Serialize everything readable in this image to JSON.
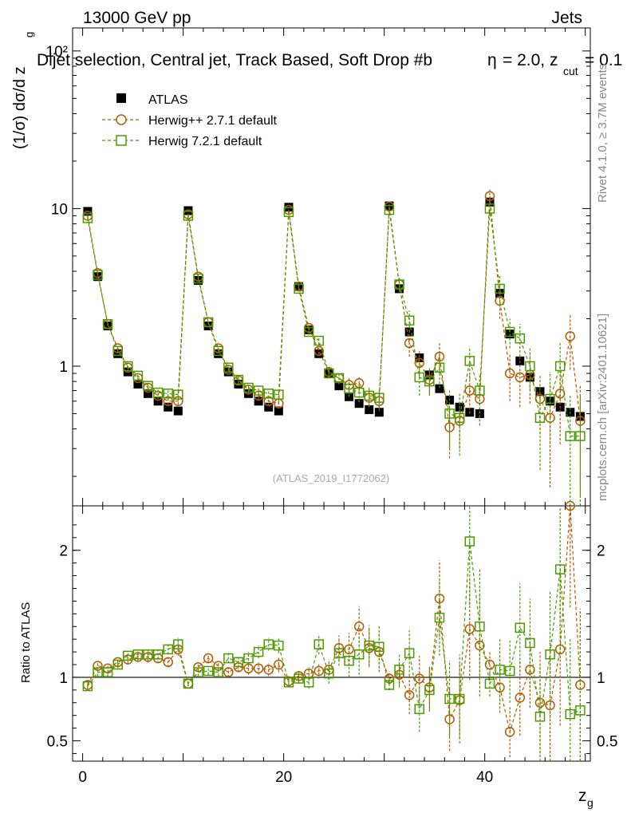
{
  "header": {
    "left": "13000 GeV pp",
    "right": "Jets",
    "title": "Dijet selection, Central jet, Track Based, Soft Drop #b",
    "title_rest": "= 2.0, z",
    "title_sub": "cut",
    "title_end": "= 0.1",
    "eta_glyph": "η"
  },
  "side_labels": {
    "rivet": "Rivet 4.1.0, ≥ 3.7M events",
    "mcplots": "mcplots.cern.ch [arXiv:2401.10621]"
  },
  "watermark": "(ATLAS_2019_I1772062)",
  "chart_data": [
    {
      "type": "scatter",
      "panel": "main",
      "title": "Dijet selection, Central jet, Track Based, Soft Drop #b = 2.0, z_cut = 0.1",
      "xlabel": "z",
      "xlabel_sub": "g",
      "ylabel": "(1/σ) dσ/d z",
      "ylabel_sub": "g",
      "yscale": "log",
      "xlim": [
        -1,
        50.5
      ],
      "ylim": [
        0.13,
        140
      ],
      "y_ticks": [
        {
          "v": 1,
          "label": "1"
        },
        {
          "v": 10,
          "label": "10"
        },
        {
          "v": 100,
          "label": "10²"
        }
      ],
      "x_ticks": [
        {
          "v": 0,
          "label": "0"
        },
        {
          "v": 20,
          "label": "20"
        },
        {
          "v": 40,
          "label": "40"
        }
      ],
      "x": [
        0.5,
        1.5,
        2.5,
        3.5,
        4.5,
        5.5,
        6.5,
        7.5,
        8.5,
        9.5,
        10.5,
        11.5,
        12.5,
        13.5,
        14.5,
        15.5,
        16.5,
        17.5,
        18.5,
        19.5,
        20.5,
        21.5,
        22.5,
        23.5,
        24.5,
        25.5,
        26.5,
        27.5,
        28.5,
        29.5,
        30.5,
        31.5,
        32.5,
        33.5,
        34.5,
        35.5,
        36.5,
        37.5,
        38.5,
        39.5,
        40.5,
        41.5,
        42.5,
        43.5,
        44.5,
        45.5,
        46.5,
        47.5,
        48.5,
        49.5
      ],
      "series": [
        {
          "name": "ATLAS",
          "color": "#000000",
          "marker": "filled-square",
          "line": "none",
          "values": [
            9.6,
            3.7,
            1.8,
            1.2,
            0.92,
            0.77,
            0.67,
            0.6,
            0.55,
            0.52,
            9.7,
            3.5,
            1.8,
            1.2,
            0.92,
            0.77,
            0.67,
            0.6,
            0.55,
            0.52,
            10.2,
            3.2,
            1.7,
            1.2,
            0.9,
            0.75,
            0.64,
            0.58,
            0.53,
            0.51,
            10.4,
            3.1,
            1.65,
            1.13,
            0.88,
            0.72,
            0.61,
            0.55,
            0.51,
            0.5,
            11,
            2.9,
            1.6,
            1.08,
            0.85,
            0.69,
            0.6,
            0.55,
            0.51,
            0.48
          ]
        },
        {
          "name": "Herwig++ 2.7.1 default",
          "color": "#b35a00",
          "marker": "open-circle",
          "line": "dashed",
          "values": [
            9.0,
            3.9,
            1.85,
            1.3,
            0.98,
            0.84,
            0.73,
            0.65,
            0.6,
            0.6,
            9.2,
            3.7,
            1.9,
            1.3,
            0.95,
            0.81,
            0.71,
            0.65,
            0.6,
            0.58,
            9.8,
            3.2,
            1.75,
            1.25,
            0.92,
            0.84,
            0.76,
            0.78,
            0.63,
            0.6,
            10.3,
            3.3,
            1.4,
            1.05,
            0.82,
            1.15,
            0.41,
            0.45,
            0.7,
            0.62,
            12,
            2.6,
            0.9,
            0.85,
            0.88,
            0.62,
            0.47,
            0.67,
            1.55,
            0.45
          ],
          "errors": [
            0.2,
            0.08,
            0.04,
            0.03,
            0.03,
            0.03,
            0.03,
            0.03,
            0.03,
            0.03,
            0.2,
            0.08,
            0.05,
            0.04,
            0.04,
            0.04,
            0.04,
            0.04,
            0.04,
            0.04,
            0.3,
            0.1,
            0.07,
            0.06,
            0.06,
            0.07,
            0.08,
            0.09,
            0.08,
            0.08,
            0.4,
            0.3,
            0.25,
            0.2,
            0.15,
            0.25,
            0.15,
            0.15,
            0.2,
            0.2,
            1.2,
            0.6,
            0.3,
            0.3,
            0.3,
            0.25,
            0.3,
            0.35,
            0.6,
            0.3
          ]
        },
        {
          "name": "Herwig 7.2.1 default",
          "color": "#4a9a00",
          "marker": "open-square",
          "line": "dashed",
          "values": [
            8.7,
            3.8,
            1.85,
            1.25,
            1.0,
            0.87,
            0.75,
            0.68,
            0.67,
            0.66,
            9.0,
            3.6,
            1.9,
            1.25,
            0.98,
            0.82,
            0.73,
            0.7,
            0.67,
            0.66,
            9.5,
            3.1,
            1.65,
            1.45,
            0.9,
            0.84,
            0.72,
            0.68,
            0.65,
            0.63,
            9.8,
            3.3,
            1.95,
            0.85,
            0.8,
            0.98,
            0.5,
            0.47,
            1.08,
            0.7,
            10,
            3.1,
            1.65,
            1.5,
            1.0,
            0.47,
            0.62,
            1.0,
            0.36,
            0.36
          ],
          "errors": [
            0.2,
            0.08,
            0.04,
            0.03,
            0.03,
            0.03,
            0.03,
            0.03,
            0.03,
            0.03,
            0.2,
            0.08,
            0.05,
            0.04,
            0.04,
            0.04,
            0.04,
            0.04,
            0.04,
            0.04,
            0.3,
            0.1,
            0.07,
            0.08,
            0.06,
            0.07,
            0.08,
            0.09,
            0.09,
            0.09,
            0.4,
            0.35,
            0.3,
            0.2,
            0.15,
            0.25,
            0.2,
            0.2,
            0.25,
            0.2,
            1.0,
            0.7,
            0.35,
            0.35,
            0.3,
            0.25,
            0.3,
            0.4,
            0.3,
            0.3
          ]
        }
      ],
      "legend": "top-left"
    },
    {
      "type": "scatter",
      "panel": "ratio",
      "ylabel": "Ratio to ATLAS",
      "ylim": [
        0.34,
        2.35
      ],
      "y_ticks": [
        {
          "v": 0.5,
          "label": "0.5"
        },
        {
          "v": 1,
          "label": "1"
        },
        {
          "v": 2,
          "label": "2"
        }
      ],
      "reference_line": 1,
      "series": [
        {
          "name": "Herwig++ 2.7.1 default",
          "color": "#b35a00",
          "marker": "open-circle",
          "values": [
            0.94,
            1.09,
            1.07,
            1.12,
            1.14,
            1.16,
            1.16,
            1.15,
            1.12,
            1.22,
            0.95,
            1.08,
            1.15,
            1.09,
            1.04,
            1.08,
            1.07,
            1.07,
            1.06,
            1.1,
            0.97,
            1.01,
            1.03,
            1.05,
            1.06,
            1.23,
            1.22,
            1.4,
            1.23,
            1.2,
            0.99,
            1.02,
            0.86,
            0.99,
            0.92,
            1.62,
            0.67,
            0.82,
            1.38,
            1.25,
            1.1,
            0.92,
            0.57,
            0.84,
            1.06,
            0.8,
            0.78,
            1.22,
            2.35,
            0.94
          ],
          "errors": [
            0.02,
            0.03,
            0.03,
            0.03,
            0.03,
            0.03,
            0.04,
            0.04,
            0.04,
            0.05,
            0.02,
            0.03,
            0.03,
            0.03,
            0.04,
            0.04,
            0.05,
            0.05,
            0.05,
            0.06,
            0.03,
            0.04,
            0.05,
            0.06,
            0.08,
            0.1,
            0.13,
            0.16,
            0.15,
            0.16,
            0.04,
            0.1,
            0.15,
            0.18,
            0.17,
            0.3,
            0.25,
            0.3,
            0.4,
            0.4,
            0.11,
            0.2,
            0.2,
            0.3,
            0.3,
            0.4,
            0.5,
            0.6,
            0.8,
            0.6
          ]
        },
        {
          "name": "Herwig 7.2.1 default",
          "color": "#4a9a00",
          "marker": "open-square",
          "values": [
            0.93,
            1.04,
            1.04,
            1.1,
            1.17,
            1.18,
            1.18,
            1.18,
            1.22,
            1.26,
            0.95,
            1.04,
            1.05,
            1.04,
            1.15,
            1.12,
            1.15,
            1.2,
            1.26,
            1.25,
            0.96,
            0.99,
            0.96,
            1.26,
            1.03,
            1.19,
            1.13,
            1.18,
            1.25,
            1.24,
            0.94,
            1.06,
            1.19,
            0.75,
            0.9,
            1.47,
            0.83,
            0.83,
            2.07,
            1.4,
            0.95,
            1.06,
            1.05,
            1.39,
            1.27,
            0.69,
            1.18,
            1.85,
            0.71,
            0.74
          ],
          "errors": [
            0.02,
            0.03,
            0.03,
            0.03,
            0.03,
            0.03,
            0.04,
            0.04,
            0.04,
            0.05,
            0.02,
            0.03,
            0.03,
            0.03,
            0.04,
            0.04,
            0.05,
            0.05,
            0.05,
            0.06,
            0.03,
            0.04,
            0.05,
            0.08,
            0.08,
            0.1,
            0.13,
            0.16,
            0.16,
            0.17,
            0.04,
            0.12,
            0.18,
            0.18,
            0.17,
            0.3,
            0.3,
            0.35,
            0.5,
            0.45,
            0.1,
            0.25,
            0.25,
            0.35,
            0.35,
            0.4,
            0.5,
            0.7,
            0.6,
            0.6
          ]
        }
      ]
    }
  ]
}
